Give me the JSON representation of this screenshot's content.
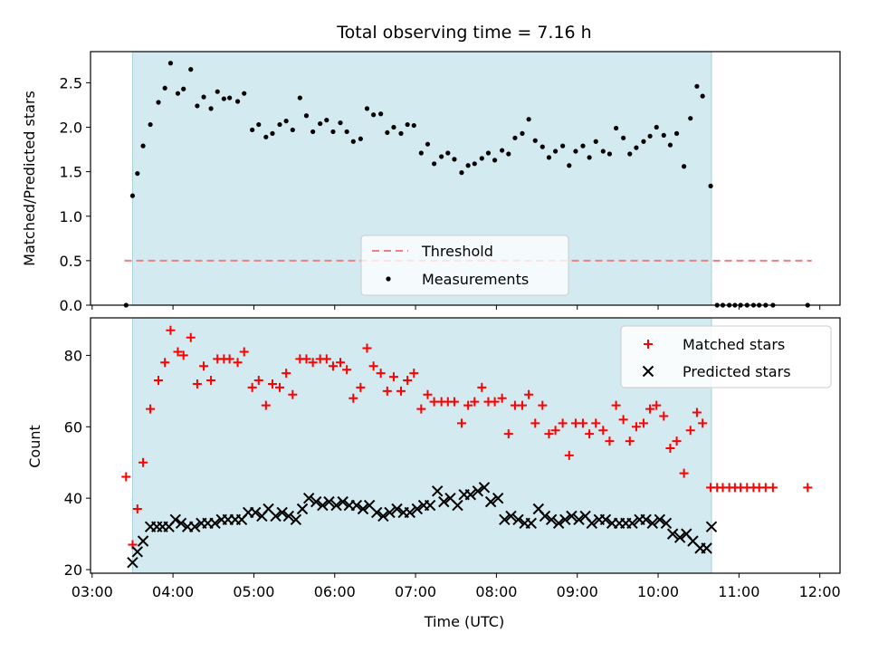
{
  "chart_data": [
    {
      "type": "scatter",
      "title": "Total observing time = 7.16 h",
      "ylabel": "Matched/Predicted stars",
      "ylim": [
        0,
        2.85
      ],
      "yticks": [
        "0.0",
        "0.5",
        "1.0",
        "1.5",
        "2.0",
        "2.5"
      ],
      "observing_window": [
        3.5,
        10.66
      ],
      "observing_window_color": "#d3eaf0",
      "threshold": {
        "name": "Threshold",
        "value": 0.5,
        "x_range": [
          3.4,
          11.9
        ],
        "color": "#f08080"
      },
      "legend": [
        "Threshold",
        "Measurements"
      ],
      "legend_position": "lower center",
      "series": [
        {
          "name": "Measurements",
          "color": "#000000",
          "marker": "dot",
          "x": [
            3.42,
            3.5,
            3.56,
            3.63,
            3.72,
            3.82,
            3.9,
            3.97,
            4.06,
            4.13,
            4.22,
            4.3,
            4.38,
            4.47,
            4.55,
            4.63,
            4.7,
            4.8,
            4.88,
            4.98,
            5.06,
            5.15,
            5.23,
            5.32,
            5.4,
            5.48,
            5.57,
            5.65,
            5.73,
            5.82,
            5.9,
            5.98,
            6.07,
            6.15,
            6.23,
            6.32,
            6.4,
            6.48,
            6.57,
            6.65,
            6.73,
            6.82,
            6.9,
            6.98,
            7.07,
            7.15,
            7.23,
            7.32,
            7.4,
            7.48,
            7.57,
            7.65,
            7.73,
            7.82,
            7.9,
            7.98,
            8.07,
            8.15,
            8.23,
            8.32,
            8.4,
            8.48,
            8.57,
            8.65,
            8.73,
            8.82,
            8.9,
            8.98,
            9.07,
            9.15,
            9.23,
            9.32,
            9.4,
            9.48,
            9.57,
            9.65,
            9.73,
            9.82,
            9.9,
            9.98,
            10.07,
            10.15,
            10.23,
            10.32,
            10.4,
            10.48,
            10.55,
            10.65,
            10.73,
            10.8,
            10.88,
            10.95,
            11.02,
            11.1,
            11.18,
            11.25,
            11.33,
            11.42,
            11.85
          ],
          "y": [
            0.0,
            1.23,
            1.48,
            1.79,
            2.03,
            2.28,
            2.44,
            2.72,
            2.38,
            2.43,
            2.65,
            2.24,
            2.34,
            2.21,
            2.4,
            2.32,
            2.33,
            2.29,
            2.38,
            1.97,
            2.03,
            1.89,
            1.93,
            2.03,
            2.07,
            1.97,
            2.33,
            2.13,
            1.95,
            2.04,
            2.08,
            1.95,
            2.05,
            1.95,
            1.84,
            1.87,
            2.21,
            2.14,
            2.15,
            1.94,
            2.0,
            1.93,
            2.03,
            2.02,
            1.71,
            1.81,
            1.59,
            1.67,
            1.71,
            1.64,
            1.49,
            1.57,
            1.59,
            1.65,
            1.71,
            1.63,
            1.74,
            1.7,
            1.88,
            1.93,
            2.09,
            1.85,
            1.78,
            1.66,
            1.73,
            1.79,
            1.57,
            1.73,
            1.79,
            1.66,
            1.84,
            1.73,
            1.7,
            1.99,
            1.88,
            1.7,
            1.77,
            1.84,
            1.9,
            2.0,
            1.91,
            1.8,
            1.93,
            1.56,
            2.1,
            2.46,
            2.35,
            1.34,
            0.0,
            0.0,
            0.0,
            0.0,
            0.0,
            0.0,
            0.0,
            0.0,
            0.0,
            0.0,
            0.0
          ]
        }
      ]
    },
    {
      "type": "scatter",
      "xlabel": "Time (UTC)",
      "ylabel": "Count",
      "ylim": [
        19,
        90.5
      ],
      "yticks": [
        "20",
        "40",
        "60",
        "80"
      ],
      "xlim": [
        2.98,
        12.25
      ],
      "xticks": [
        {
          "value": 3,
          "label": "03:00"
        },
        {
          "value": 4,
          "label": "04:00"
        },
        {
          "value": 5,
          "label": "05:00"
        },
        {
          "value": 6,
          "label": "06:00"
        },
        {
          "value": 7,
          "label": "07:00"
        },
        {
          "value": 8,
          "label": "08:00"
        },
        {
          "value": 9,
          "label": "09:00"
        },
        {
          "value": 10,
          "label": "10:00"
        },
        {
          "value": 11,
          "label": "11:00"
        },
        {
          "value": 12,
          "label": "12:00"
        }
      ],
      "observing_window": [
        3.5,
        10.66
      ],
      "observing_window_color": "#d3eaf0",
      "legend": [
        "Matched stars",
        "Predicted stars"
      ],
      "legend_position": "upper right",
      "series": [
        {
          "name": "Matched stars",
          "color": "#ff0000",
          "marker": "plus",
          "x": [
            3.42,
            3.5,
            3.56,
            3.63,
            3.72,
            3.82,
            3.9,
            3.97,
            4.06,
            4.13,
            4.22,
            4.3,
            4.38,
            4.47,
            4.55,
            4.63,
            4.7,
            4.8,
            4.88,
            4.98,
            5.06,
            5.15,
            5.23,
            5.32,
            5.4,
            5.48,
            5.57,
            5.65,
            5.73,
            5.82,
            5.9,
            5.98,
            6.07,
            6.15,
            6.23,
            6.32,
            6.4,
            6.48,
            6.57,
            6.65,
            6.73,
            6.82,
            6.9,
            6.98,
            7.07,
            7.15,
            7.23,
            7.32,
            7.4,
            7.48,
            7.57,
            7.65,
            7.73,
            7.82,
            7.9,
            7.98,
            8.07,
            8.15,
            8.23,
            8.32,
            8.4,
            8.48,
            8.57,
            8.65,
            8.73,
            8.82,
            8.9,
            8.98,
            9.07,
            9.15,
            9.23,
            9.32,
            9.4,
            9.48,
            9.57,
            9.65,
            9.73,
            9.82,
            9.9,
            9.98,
            10.07,
            10.15,
            10.23,
            10.32,
            10.4,
            10.48,
            10.55,
            10.65,
            10.73,
            10.8,
            10.88,
            10.95,
            11.02,
            11.1,
            11.18,
            11.25,
            11.33,
            11.42,
            11.85
          ],
          "y": [
            46,
            27,
            37,
            50,
            65,
            73,
            78,
            87,
            81,
            80,
            85,
            72,
            77,
            73,
            79,
            79,
            79,
            78,
            81,
            71,
            73,
            66,
            72,
            71,
            75,
            69,
            79,
            79,
            78,
            79,
            79,
            77,
            78,
            76,
            68,
            71,
            82,
            77,
            75,
            70,
            74,
            70,
            73,
            75,
            65,
            69,
            67,
            67,
            67,
            67,
            61,
            66,
            67,
            71,
            67,
            67,
            68,
            58,
            66,
            66,
            69,
            61,
            66,
            58,
            59,
            61,
            52,
            61,
            61,
            58,
            61,
            59,
            56,
            66,
            62,
            56,
            60,
            61,
            65,
            66,
            63,
            54,
            56,
            47,
            59,
            64,
            61,
            43,
            43,
            43,
            43,
            43,
            43,
            43,
            43,
            43,
            43,
            43,
            43
          ]
        },
        {
          "name": "Predicted stars",
          "color": "#000000",
          "marker": "x",
          "x": [
            3.5,
            3.56,
            3.63,
            3.72,
            3.8,
            3.87,
            3.95,
            4.03,
            4.1,
            4.18,
            4.27,
            4.35,
            4.43,
            4.52,
            4.6,
            4.68,
            4.77,
            4.85,
            4.93,
            5.02,
            5.1,
            5.18,
            5.27,
            5.35,
            5.43,
            5.52,
            5.6,
            5.68,
            5.77,
            5.85,
            5.93,
            6.02,
            6.1,
            6.18,
            6.27,
            6.35,
            6.43,
            6.52,
            6.6,
            6.68,
            6.77,
            6.85,
            6.93,
            7.02,
            7.1,
            7.18,
            7.27,
            7.35,
            7.43,
            7.52,
            7.6,
            7.68,
            7.77,
            7.85,
            7.93,
            8.02,
            8.1,
            8.18,
            8.27,
            8.35,
            8.43,
            8.52,
            8.6,
            8.68,
            8.77,
            8.85,
            8.93,
            9.02,
            9.1,
            9.18,
            9.27,
            9.35,
            9.43,
            9.52,
            9.6,
            9.68,
            9.77,
            9.85,
            9.93,
            10.02,
            10.1,
            10.18,
            10.27,
            10.35,
            10.43,
            10.52,
            10.6,
            10.66
          ],
          "y": [
            22,
            25,
            28,
            32,
            32,
            32,
            32,
            34,
            33,
            32,
            32,
            33,
            33,
            33,
            34,
            34,
            34,
            34,
            36,
            36,
            35,
            37,
            35,
            36,
            35,
            34,
            37,
            40,
            39,
            38,
            39,
            38,
            39,
            38,
            38,
            37,
            38,
            36,
            35,
            36,
            37,
            36,
            36,
            37,
            38,
            38,
            42,
            39,
            40,
            38,
            41,
            41,
            42,
            43,
            39,
            40,
            34,
            35,
            34,
            33,
            33,
            37,
            35,
            34,
            33,
            34,
            35,
            34,
            35,
            33,
            34,
            34,
            33,
            33,
            33,
            33,
            34,
            34,
            33,
            34,
            33,
            30,
            29,
            30,
            28,
            26,
            26,
            32
          ]
        }
      ]
    }
  ]
}
